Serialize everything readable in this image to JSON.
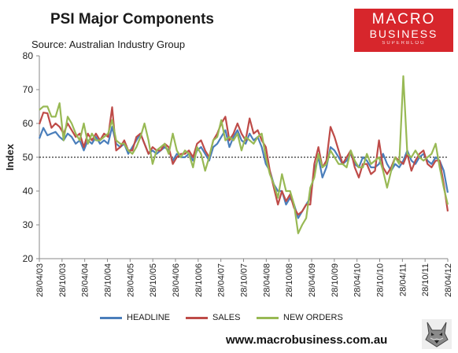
{
  "title": "PSI Major Components",
  "source": "Source: Australian Industry Group",
  "logo": {
    "line1": "MACRO",
    "line2": "BUSINESS",
    "line3": "SUPERBLOG"
  },
  "footer": "www.macrobusiness.com.au",
  "colors": {
    "headline": "#4a7ebb",
    "sales": "#be4b48",
    "new_orders": "#98b954",
    "brand": "#d7262c"
  },
  "chart_data": {
    "type": "line",
    "title": "PSI Major Components",
    "ylabel": "Index",
    "xlabel": "",
    "ylim": [
      20,
      80
    ],
    "yticks": [
      20,
      30,
      40,
      50,
      60,
      70,
      80
    ],
    "reference_line": 50,
    "xtick_labels": [
      "28/04/03",
      "28/10/03",
      "28/04/04",
      "28/10/04",
      "28/04/05",
      "28/10/05",
      "28/04/06",
      "28/10/06",
      "28/04/07",
      "28/10/07",
      "28/04/08",
      "28/10/08",
      "28/04/09",
      "28/10/09",
      "28/04/10",
      "28/10/10",
      "28/04/11",
      "28/10/11",
      "28/04/12"
    ],
    "legend": "bottom",
    "series": [
      {
        "name": "HEADLINE",
        "color": "#4a7ebb",
        "values": [
          55.5,
          58.7,
          56.5,
          57,
          57.5,
          56,
          55,
          57,
          56,
          54,
          55,
          52,
          55,
          54,
          56,
          54,
          55,
          54,
          59,
          54,
          53,
          54,
          51,
          53,
          55,
          57,
          54,
          51,
          52,
          51,
          52,
          53,
          52,
          49,
          51,
          50,
          50,
          51,
          49,
          52,
          53,
          51,
          49,
          53,
          54,
          56,
          58,
          53,
          56,
          58,
          55,
          54,
          57,
          55,
          56,
          53,
          48,
          46,
          42,
          40,
          40,
          36,
          38,
          36,
          32,
          34,
          36,
          38,
          46,
          50,
          44,
          47,
          53,
          52,
          50,
          48,
          49,
          51,
          48,
          47,
          50,
          49,
          47,
          47,
          48,
          51,
          48,
          46,
          48,
          47,
          49,
          52,
          49,
          48,
          50,
          51,
          49,
          48,
          50,
          49,
          46,
          39.5
        ]
      },
      {
        "name": "SALES",
        "color": "#be4b48",
        "values": [
          59.8,
          63.2,
          63,
          58.7,
          60,
          59,
          57,
          60,
          58,
          56,
          57,
          53,
          57,
          55,
          57,
          55,
          57,
          56,
          64.8,
          52,
          53,
          55,
          52,
          52,
          56,
          57,
          54,
          51,
          53,
          52,
          52,
          54,
          53,
          48,
          50,
          51,
          51,
          52,
          50,
          54,
          55,
          52,
          50,
          55,
          57,
          60,
          62,
          55,
          57,
          60,
          57,
          55,
          61.5,
          57,
          58,
          55,
          53,
          46,
          41,
          36,
          40,
          37,
          39,
          35,
          33,
          34,
          36,
          36,
          48,
          53,
          47,
          49,
          59,
          56,
          52,
          48,
          50,
          52,
          47,
          44,
          48,
          48,
          45,
          46,
          55,
          47,
          45,
          47,
          50,
          49,
          48,
          51,
          46,
          49,
          51,
          52,
          48,
          47,
          49,
          49,
          42,
          34
        ]
      },
      {
        "name": "NEW ORDERS",
        "color": "#98b954",
        "values": [
          64,
          65,
          65,
          62,
          62,
          66,
          55,
          62,
          60,
          57,
          55,
          60,
          54,
          57,
          55,
          55,
          56,
          57,
          61,
          55,
          54,
          54,
          52,
          51,
          53,
          56,
          60,
          55,
          48,
          52,
          53,
          54,
          51,
          57,
          52,
          50,
          52,
          51,
          47,
          53,
          51,
          46,
          50,
          55,
          56,
          61,
          55,
          56,
          55,
          57,
          52,
          56,
          55,
          54,
          56,
          57,
          50,
          45,
          42,
          38,
          45,
          40,
          40,
          36,
          27.5,
          30,
          32,
          41,
          44,
          51,
          47,
          48,
          52,
          50,
          48,
          48,
          47,
          52,
          49,
          47,
          47,
          51,
          48,
          49,
          50,
          46,
          41,
          46,
          50,
          48,
          74,
          51,
          50,
          52,
          50,
          49,
          50,
          51,
          54,
          47,
          41,
          36
        ]
      }
    ]
  }
}
